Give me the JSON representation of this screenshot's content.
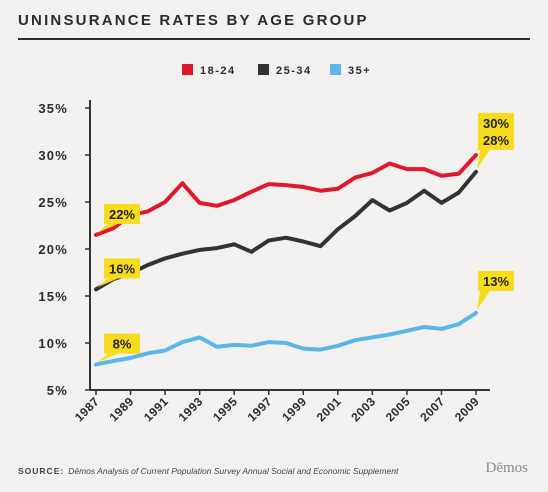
{
  "title": "UNINSURANCE RATES BY AGE GROUP",
  "source_label": "SOURCE:",
  "source_text": "Dēmos Analysis of Current Population Survey Annual Social and Economic Supplement",
  "brand": "Dēmos",
  "chart_data": {
    "type": "line",
    "x": [
      1987,
      1988,
      1989,
      1990,
      1991,
      1992,
      1993,
      1994,
      1995,
      1996,
      1997,
      1998,
      1999,
      2000,
      2001,
      2002,
      2003,
      2004,
      2005,
      2006,
      2007,
      2008,
      2009
    ],
    "x_tick_labels": [
      "1987",
      "1989",
      "1991",
      "1993",
      "1995",
      "1997",
      "1999",
      "2001",
      "2003",
      "2005",
      "2007",
      "2009"
    ],
    "y_tick_labels": [
      "5%",
      "10%",
      "15%",
      "20%",
      "25%",
      "30%",
      "35%"
    ],
    "ylim": [
      5,
      35
    ],
    "grid": false,
    "legend_position": "top-center",
    "series": [
      {
        "name": "18-24",
        "color": "#e0182d",
        "values": [
          21.5,
          22.2,
          23.6,
          24.0,
          25.0,
          27.0,
          24.9,
          24.6,
          25.2,
          26.1,
          26.9,
          26.8,
          26.6,
          26.2,
          26.4,
          27.6,
          28.1,
          29.1,
          28.5,
          28.5,
          27.8,
          28.0,
          30.0
        ]
      },
      {
        "name": "25-34",
        "color": "#333333",
        "values": [
          15.7,
          16.8,
          17.4,
          18.3,
          19.0,
          19.5,
          19.9,
          20.1,
          20.5,
          19.7,
          20.9,
          21.2,
          20.8,
          20.3,
          22.1,
          23.5,
          25.2,
          24.1,
          24.9,
          26.2,
          24.9,
          26.0,
          28.2
        ]
      },
      {
        "name": "35+",
        "color": "#5bb7ea",
        "values": [
          7.7,
          8.1,
          8.4,
          8.9,
          9.2,
          10.1,
          10.6,
          9.6,
          9.8,
          9.7,
          10.1,
          10.0,
          9.4,
          9.3,
          9.7,
          10.3,
          10.6,
          10.9,
          11.3,
          11.7,
          11.5,
          12.0,
          13.2
        ]
      }
    ],
    "annotations": [
      {
        "text": "22%",
        "x": 1987,
        "y": 21.5,
        "callout": "start"
      },
      {
        "text": "16%",
        "x": 1987,
        "y": 15.7,
        "callout": "start"
      },
      {
        "text": "8%",
        "x": 1987,
        "y": 7.7,
        "callout": "start"
      },
      {
        "text": "30%",
        "x": 2009,
        "y": 30.0,
        "callout": "end"
      },
      {
        "text": "28%",
        "x": 2009,
        "y": 28.2,
        "callout": "end"
      },
      {
        "text": "13%",
        "x": 2009,
        "y": 13.2,
        "callout": "end"
      }
    ],
    "callout_color": "#f7dc1e"
  }
}
